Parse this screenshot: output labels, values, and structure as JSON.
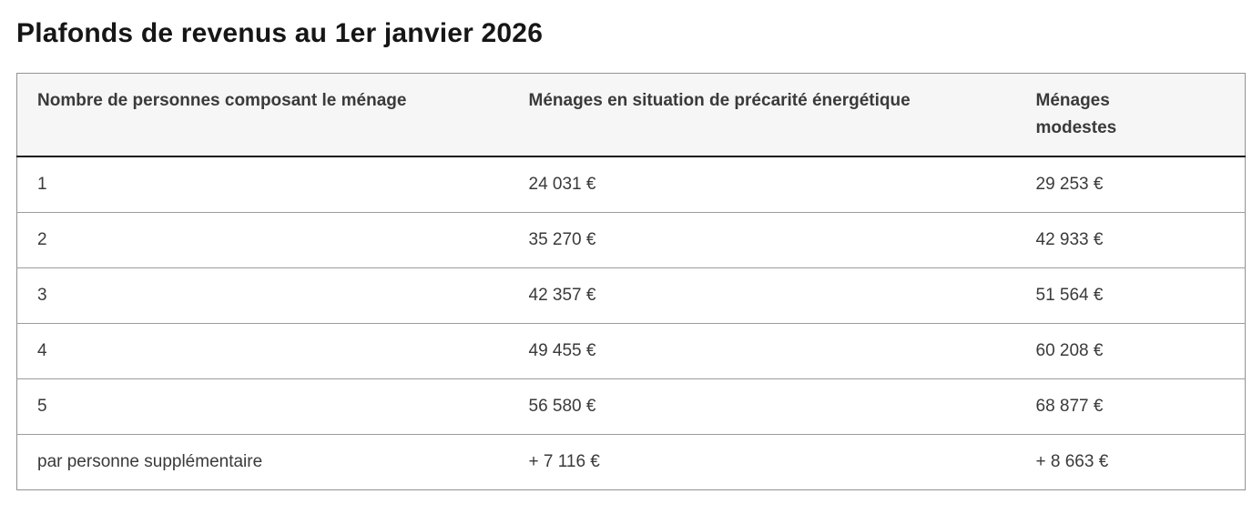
{
  "page": {
    "title": "Plafonds de revenus au 1er janvier 2026"
  },
  "table": {
    "headers": [
      "Nombre de personnes composant le ménage",
      "Ménages en situation de précarité énergétique",
      "Ménages modestes"
    ],
    "rows": [
      {
        "cells": [
          "1",
          "24 031 €",
          "29 253 €"
        ]
      },
      {
        "cells": [
          "2",
          "35 270 €",
          "42 933 €"
        ]
      },
      {
        "cells": [
          "3",
          "42 357 €",
          "51 564 €"
        ]
      },
      {
        "cells": [
          "4",
          "49 455 €",
          "60 208 €"
        ]
      },
      {
        "cells": [
          "5",
          "56 580 €",
          "68 877 €"
        ]
      },
      {
        "cells": [
          "par personne supplémentaire",
          "+ 7 116 €",
          "+ 8 663 €"
        ]
      }
    ]
  },
  "colors": {
    "title_text": "#161616",
    "body_text": "#3a3a3a",
    "header_background": "#f6f6f6",
    "header_divider": "#161616",
    "row_divider": "#9c9c9c",
    "table_border": "#929292"
  }
}
